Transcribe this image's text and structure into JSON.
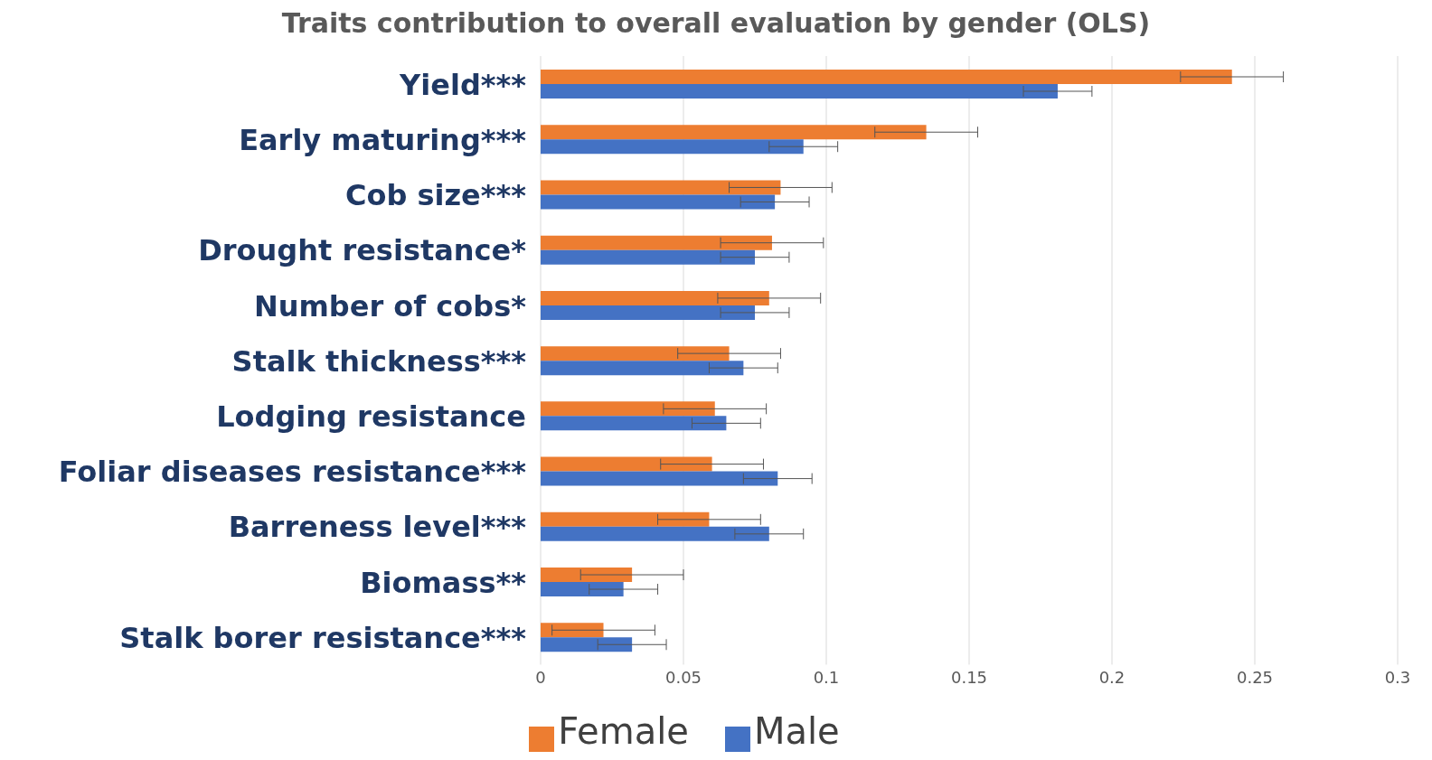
{
  "chart_data": {
    "type": "bar",
    "orientation": "horizontal",
    "title": "Traits contribution to overall evaluation by gender (OLS)",
    "categories": [
      "Yield***",
      "Early maturing***",
      "Cob size***",
      "Drought resistance*",
      "Number of cobs*",
      "Stalk thickness***",
      "Lodging resistance",
      "Foliar diseases resistance***",
      "Barreness level***",
      "Biomass**",
      "Stalk borer resistance***"
    ],
    "series": [
      {
        "name": "Female",
        "color": "#ed7d31",
        "values": [
          0.242,
          0.135,
          0.084,
          0.081,
          0.08,
          0.066,
          0.061,
          0.06,
          0.059,
          0.032,
          0.022
        ],
        "errors": [
          0.018,
          0.018,
          0.018,
          0.018,
          0.018,
          0.018,
          0.018,
          0.018,
          0.018,
          0.018,
          0.018
        ]
      },
      {
        "name": "Male",
        "color": "#4472c4",
        "values": [
          0.181,
          0.092,
          0.082,
          0.075,
          0.075,
          0.071,
          0.065,
          0.083,
          0.08,
          0.029,
          0.032
        ],
        "errors": [
          0.012,
          0.012,
          0.012,
          0.012,
          0.012,
          0.012,
          0.012,
          0.012,
          0.012,
          0.012,
          0.012
        ]
      }
    ],
    "xlim": [
      0,
      0.3
    ],
    "xticks": [
      0,
      0.05,
      0.1,
      0.15,
      0.2,
      0.25,
      0.3
    ],
    "grid": "x",
    "legend": "bottom"
  }
}
